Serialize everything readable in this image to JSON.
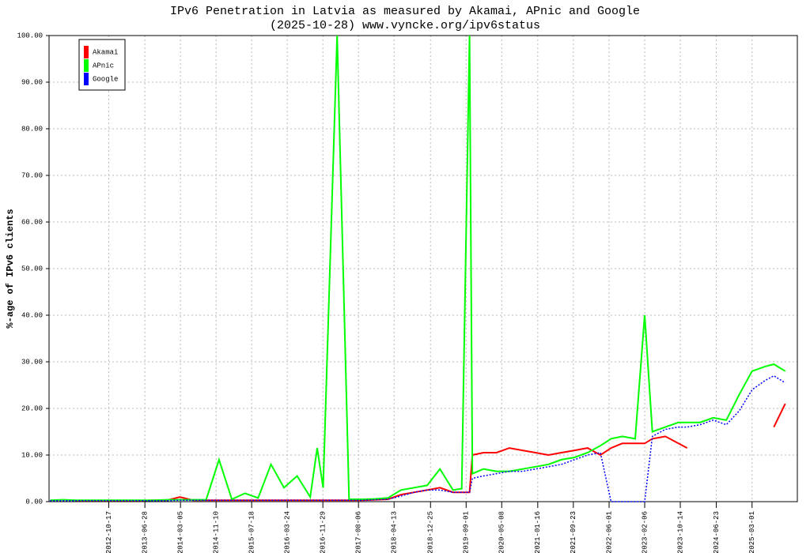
{
  "chart_data": {
    "type": "line",
    "title": "IPv6 Penetration in Latvia as measured by Akamai, APnic and Google",
    "subtitle": "(2025-10-28) www.vyncke.org/ipv6status",
    "y_label": "%-age of IPv6 clients",
    "x": [
      "2011-09-01",
      "2011-12-01",
      "2012-03-01",
      "2012-06-01",
      "2012-09-01",
      "2012-12-01",
      "2013-03-01",
      "2013-06-01",
      "2013-09-01",
      "2013-12-01",
      "2014-03-01",
      "2014-06-01",
      "2014-09-01",
      "2014-12-01",
      "2015-03-01",
      "2015-06-01",
      "2015-09-01",
      "2015-12-01",
      "2016-03-01",
      "2016-06-01",
      "2016-09-01",
      "2016-10-20",
      "2016-12-01",
      "2017-03-09",
      "2017-06-01",
      "2017-09-01",
      "2017-12-01",
      "2018-03-01",
      "2018-06-01",
      "2018-09-01",
      "2018-12-01",
      "2019-03-01",
      "2019-06-01",
      "2019-08-01",
      "2019-09-25",
      "2019-10-15",
      "2020-01-01",
      "2020-04-01",
      "2020-07-01",
      "2020-10-01",
      "2021-01-01",
      "2021-04-01",
      "2021-07-01",
      "2021-10-01",
      "2022-01-01",
      "2022-04-01",
      "2022-06-15",
      "2022-09-01",
      "2022-12-01",
      "2023-02-06",
      "2023-04-01",
      "2023-07-01",
      "2023-10-01",
      "2023-12-01",
      "2024-03-01",
      "2024-06-01",
      "2024-09-01",
      "2024-12-01",
      "2025-03-01",
      "2025-06-01",
      "2025-08-01",
      "2025-10-20"
    ],
    "series": [
      {
        "name": "Akamai",
        "color": "#ff0000",
        "dash": false,
        "values": [
          null,
          null,
          0.2,
          0.2,
          0.2,
          0.2,
          0.2,
          0.2,
          0.3,
          0.3,
          1.0,
          0.3,
          0.3,
          0.3,
          0.3,
          0.3,
          0.3,
          0.3,
          0.3,
          0.3,
          0.3,
          0.3,
          0.3,
          0.3,
          0.3,
          0.3,
          0.4,
          0.5,
          1.5,
          2.0,
          2.5,
          3.0,
          2.0,
          2.0,
          2.0,
          10.0,
          10.5,
          10.5,
          11.5,
          11.0,
          10.5,
          10.0,
          10.5,
          11.0,
          11.5,
          10.0,
          11.5,
          12.5,
          12.5,
          12.5,
          13.5,
          14.0,
          12.5,
          11.5,
          null,
          null,
          null,
          null,
          null,
          null,
          16.0,
          21.0
        ]
      },
      {
        "name": "APnic",
        "color": "#00ff00",
        "dash": false,
        "values": [
          0.3,
          0.4,
          0.3,
          0.3,
          0.3,
          0.3,
          0.3,
          0.3,
          0.3,
          0.4,
          0.4,
          0.4,
          0.4,
          9.0,
          0.5,
          1.8,
          0.8,
          8.0,
          3.0,
          5.5,
          1.0,
          11.5,
          3.0,
          100,
          0.5,
          0.5,
          0.6,
          0.8,
          2.5,
          3.0,
          3.5,
          7.0,
          2.5,
          2.8,
          100,
          6.0,
          7.0,
          6.5,
          6.5,
          7.0,
          7.5,
          8.0,
          9.0,
          9.5,
          10.5,
          12.0,
          13.5,
          14.0,
          13.5,
          40.0,
          15.0,
          16.0,
          17.0,
          17.0,
          17.0,
          18.0,
          17.5,
          23.0,
          28.0,
          29.0,
          29.5,
          28.0
        ]
      },
      {
        "name": "Google",
        "color": "#0000ff",
        "dash": true,
        "values": [
          0.2,
          0.2,
          0.2,
          0.2,
          0.2,
          0.2,
          0.2,
          0.2,
          0.2,
          0.2,
          0.3,
          0.3,
          0.3,
          0.3,
          0.3,
          0.3,
          0.3,
          0.3,
          0.3,
          0.3,
          0.3,
          0.3,
          0.3,
          0.3,
          0.3,
          0.3,
          0.4,
          0.5,
          1.2,
          2.0,
          2.5,
          2.5,
          2.0,
          2.0,
          2.0,
          5.0,
          5.5,
          6.0,
          6.5,
          6.5,
          7.0,
          7.5,
          8.0,
          9.0,
          10.0,
          10.5,
          0,
          0.0,
          0.0,
          0.0,
          14.0,
          15.5,
          16.0,
          16.0,
          16.5,
          17.5,
          16.5,
          19.5,
          24.0,
          26.0,
          27.0,
          25.5
        ]
      }
    ],
    "xlim": [
      "2011-08-25",
      "2026-01-13"
    ],
    "xticks": [
      "2012-10-17",
      "2013-06-28",
      "2014-03-05",
      "2014-11-10",
      "2015-07-18",
      "2016-03-24",
      "2016-11-29",
      "2017-08-06",
      "2018-04-13",
      "2018-12-25",
      "2019-09-01",
      "2020-05-08",
      "2021-01-16",
      "2021-09-23",
      "2022-06-01",
      "2023-02-06",
      "2023-10-14",
      "2024-06-23",
      "2025-03-01"
    ],
    "ylim": [
      0,
      100
    ],
    "yticks": [
      {
        "value": 0,
        "label": "0.00"
      },
      {
        "value": 10,
        "label": "10.00"
      },
      {
        "value": 20,
        "label": "20.00"
      },
      {
        "value": 30,
        "label": "30.00"
      },
      {
        "value": 40,
        "label": "40.00"
      },
      {
        "value": 50,
        "label": "50.00"
      },
      {
        "value": 60,
        "label": "60.00"
      },
      {
        "value": 70,
        "label": "70.00"
      },
      {
        "value": 80,
        "label": "80.00"
      },
      {
        "value": 90,
        "label": "90.00"
      },
      {
        "value": 100,
        "label": "100.00"
      }
    ],
    "grid": true,
    "legend": "upper left"
  }
}
